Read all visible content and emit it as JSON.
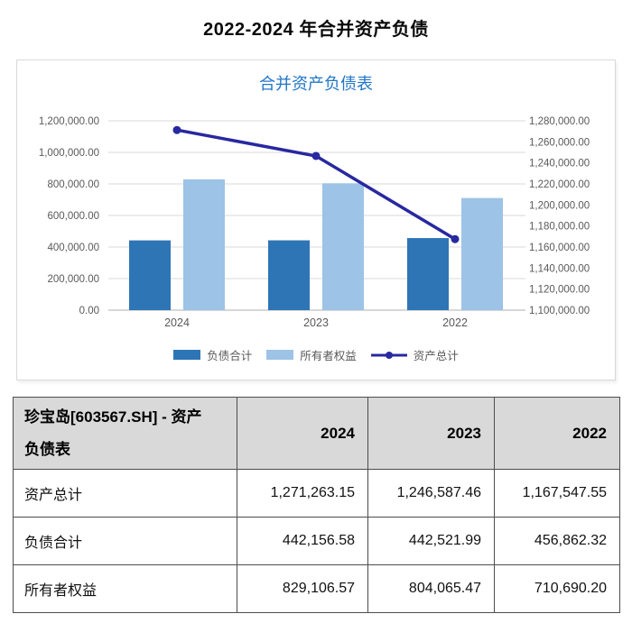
{
  "page": {
    "title": "2022-2024 年合并资产负债"
  },
  "chart": {
    "title": "合并资产负债表",
    "colors": {
      "title_text": "#2176C7",
      "axis_text": "#595959",
      "gridline": "#D9D9D9",
      "axis_line": "#BFBFBF",
      "panel_border": "#D9D9D9"
    }
  },
  "chart_data": {
    "type": "combo",
    "title": "合并资产负债表",
    "categories": [
      "2024",
      "2023",
      "2022"
    ],
    "series": [
      {
        "name": "负债合计",
        "type": "bar",
        "axis": "left",
        "color": "#2E75B6",
        "values": [
          442156.58,
          442521.99,
          456862.32
        ]
      },
      {
        "name": "所有者权益",
        "type": "bar",
        "axis": "left",
        "color": "#9DC3E6",
        "values": [
          829106.57,
          804065.47,
          710690.2
        ]
      },
      {
        "name": "资产总计",
        "type": "line",
        "axis": "right",
        "color": "#2828A0",
        "values": [
          1271263.15,
          1246587.46,
          1167547.55
        ]
      }
    ],
    "left_axis": {
      "min": 0,
      "max": 1200000,
      "step": 200000,
      "labels": [
        "0.00",
        "200,000.00",
        "400,000.00",
        "600,000.00",
        "800,000.00",
        "1,000,000.00",
        "1,200,000.00"
      ]
    },
    "right_axis": {
      "min": 1100000,
      "max": 1280000,
      "step": 20000,
      "labels": [
        "1,100,000.00",
        "1,120,000.00",
        "1,140,000.00",
        "1,160,000.00",
        "1,180,000.00",
        "1,200,000.00",
        "1,220,000.00",
        "1,240,000.00",
        "1,260,000.00",
        "1,280,000.00"
      ]
    },
    "grid": true,
    "legend_position": "bottom"
  },
  "table": {
    "header": {
      "title": "珍宝岛[603567.SH] - 资产负债表",
      "columns": [
        "2024",
        "2023",
        "2022"
      ]
    },
    "rows": [
      {
        "label": "资产总计",
        "values": [
          "1,271,263.15",
          "1,246,587.46",
          "1,167,547.55"
        ]
      },
      {
        "label": "负债合计",
        "values": [
          "442,156.58",
          "442,521.99",
          "456,862.32"
        ]
      },
      {
        "label": "所有者权益",
        "values": [
          "829,106.57",
          "804,065.47",
          "710,690.20"
        ]
      }
    ]
  }
}
